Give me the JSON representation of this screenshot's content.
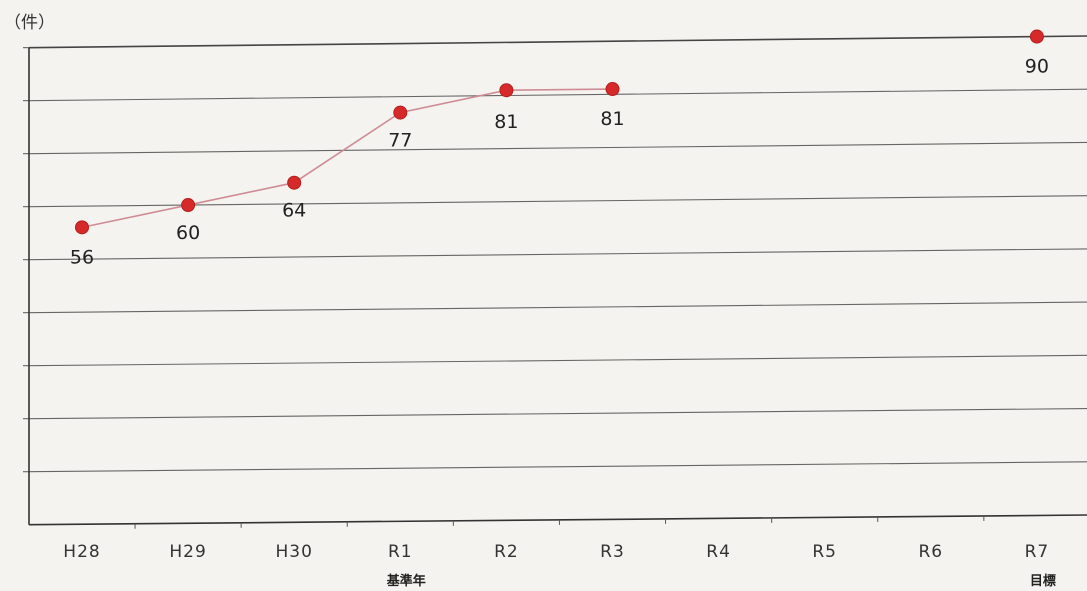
{
  "chart_data": {
    "type": "line",
    "unit_label": "（件）",
    "categories": [
      "H28",
      "H29",
      "H30",
      "R1",
      "R2",
      "R3",
      "R4",
      "R5",
      "R6",
      "R7"
    ],
    "category_notes": [
      "",
      "",
      "",
      "基準年",
      "",
      "",
      "",
      "",
      "",
      "目標"
    ],
    "series": [
      {
        "values": [
          56,
          60,
          64,
          77,
          81,
          81,
          null,
          null,
          null,
          null
        ],
        "color": "#d62a2a",
        "line_color": "#cf8c95"
      },
      {
        "values": [
          null,
          null,
          null,
          null,
          null,
          null,
          null,
          null,
          null,
          90
        ],
        "color": "#d62a2a"
      }
    ],
    "data_labels": [
      "56",
      "60",
      "64",
      "77",
      "81",
      "81",
      "",
      "",
      "",
      "90"
    ],
    "ylim": [
      0,
      90
    ],
    "grid": true
  }
}
